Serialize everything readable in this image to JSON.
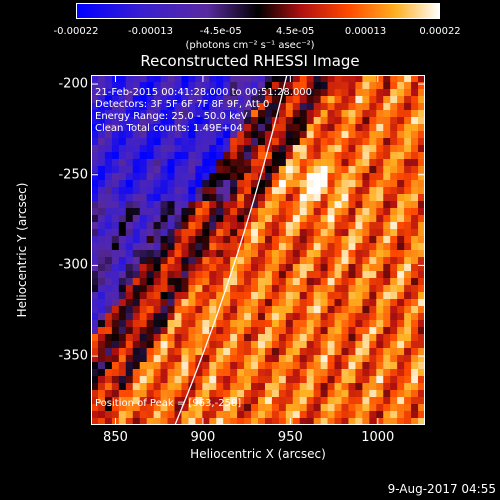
{
  "chart_data": {
    "type": "heatmap",
    "title": "Reconstructed RHESSI Image",
    "xlabel": "Heliocentric X (arcsec)",
    "ylabel": "Heliocentric Y (arcsec)",
    "xlim": [
      836,
      1027
    ],
    "ylim": [
      -388,
      -195
    ],
    "x_ticks": [
      "850",
      "900",
      "950",
      "1000"
    ],
    "x_tick_values": [
      850,
      900,
      950,
      1000
    ],
    "y_ticks": [
      "-200",
      "-250",
      "-300",
      "-350"
    ],
    "y_tick_values": [
      -200,
      -250,
      -300,
      -350
    ],
    "colorbar": {
      "tick_labels": [
        "-0.00022",
        "-0.00013",
        "-4.5e-05",
        "4.5e-05",
        "0.00013",
        "0.00022"
      ],
      "tick_values": [
        -0.00022,
        -0.00013,
        -4.5e-05,
        4.5e-05,
        0.00013,
        0.00022
      ],
      "units": "(photons cm⁻² s⁻¹ asec⁻²)",
      "range": [
        -0.00022,
        0.00022
      ],
      "colormap": "blue-purple-black-red-orange-yellow-white"
    },
    "annotations": {
      "time": "21-Feb-2015 00:41:28.000 to 00:51:28.000",
      "detectors": "Detectors: 3F 5F 6F 7F 8F 9F, Att 0",
      "energy": "Energy Range: 25.0 - 50.0 keV",
      "method": "Clean     Total counts: 1.49E+04",
      "peak": "Position of Peak = [963,-258]"
    },
    "peak": [
      963,
      -258
    ],
    "limb_line": true
  },
  "footer": {
    "timestamp": "9-Aug-2017 04:55"
  }
}
